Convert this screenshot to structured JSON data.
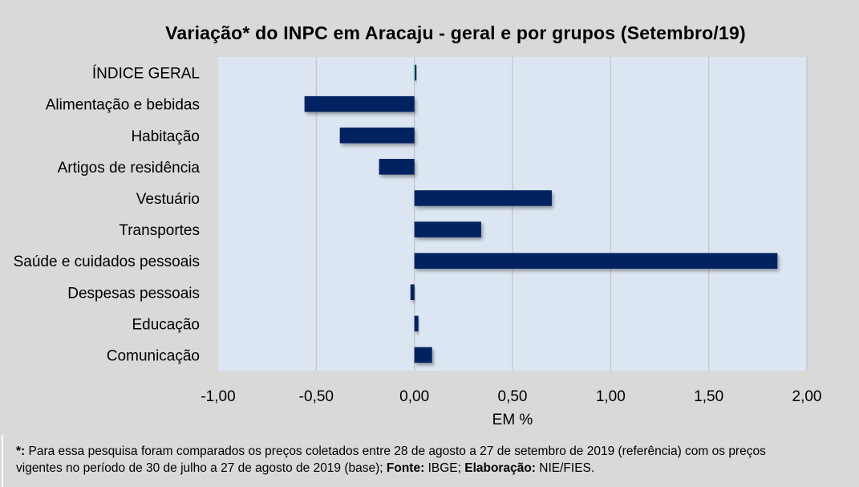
{
  "chart_data": {
    "type": "bar",
    "orientation": "horizontal",
    "title": "Variação* do INPC em Aracaju - geral e por grupos (Setembro/19)",
    "xlabel": "EM %",
    "ylabel": "",
    "xlim": [
      -1.0,
      2.0
    ],
    "xticks": [
      -1.0,
      -0.5,
      0.0,
      0.5,
      1.0,
      1.5,
      2.0
    ],
    "xtick_labels": [
      "-1,00",
      "-0,50",
      "0,00",
      "0,50",
      "1,00",
      "1,50",
      "2,00"
    ],
    "grid": true,
    "legend": "none",
    "categories": [
      "ÍNDICE GERAL",
      "Alimentação e bebidas",
      "Habitação",
      "Artigos de residência",
      "Vestuário",
      "Transportes",
      "Saúde e cuidados pessoais",
      "Despesas pessoais",
      "Educação",
      "Comunicação"
    ],
    "values": [
      0.01,
      -0.56,
      -0.38,
      -0.18,
      0.7,
      0.34,
      1.85,
      -0.02,
      0.02,
      0.09
    ],
    "colors": {
      "bar": "#002060",
      "highlight": "#7fe0b8",
      "plot_background": "#dce6f2",
      "page_background": "#d9d9d9",
      "gridline": "#c8c8c8"
    }
  },
  "footer": {
    "line1_marker": "*:",
    "line1_text": " Para essa pesquisa foram comparados os preços coletados entre 28 de agosto a 27 de setembro de 2019 (referência) com os preços",
    "line2_text": "vigentes no período de 30 de julho a 27 de agosto de 2019 (base); ",
    "source_label": "Fonte:",
    "source_value": " IBGE; ",
    "author_label": "Elaboração:",
    "author_value": " NIE/FIES."
  }
}
